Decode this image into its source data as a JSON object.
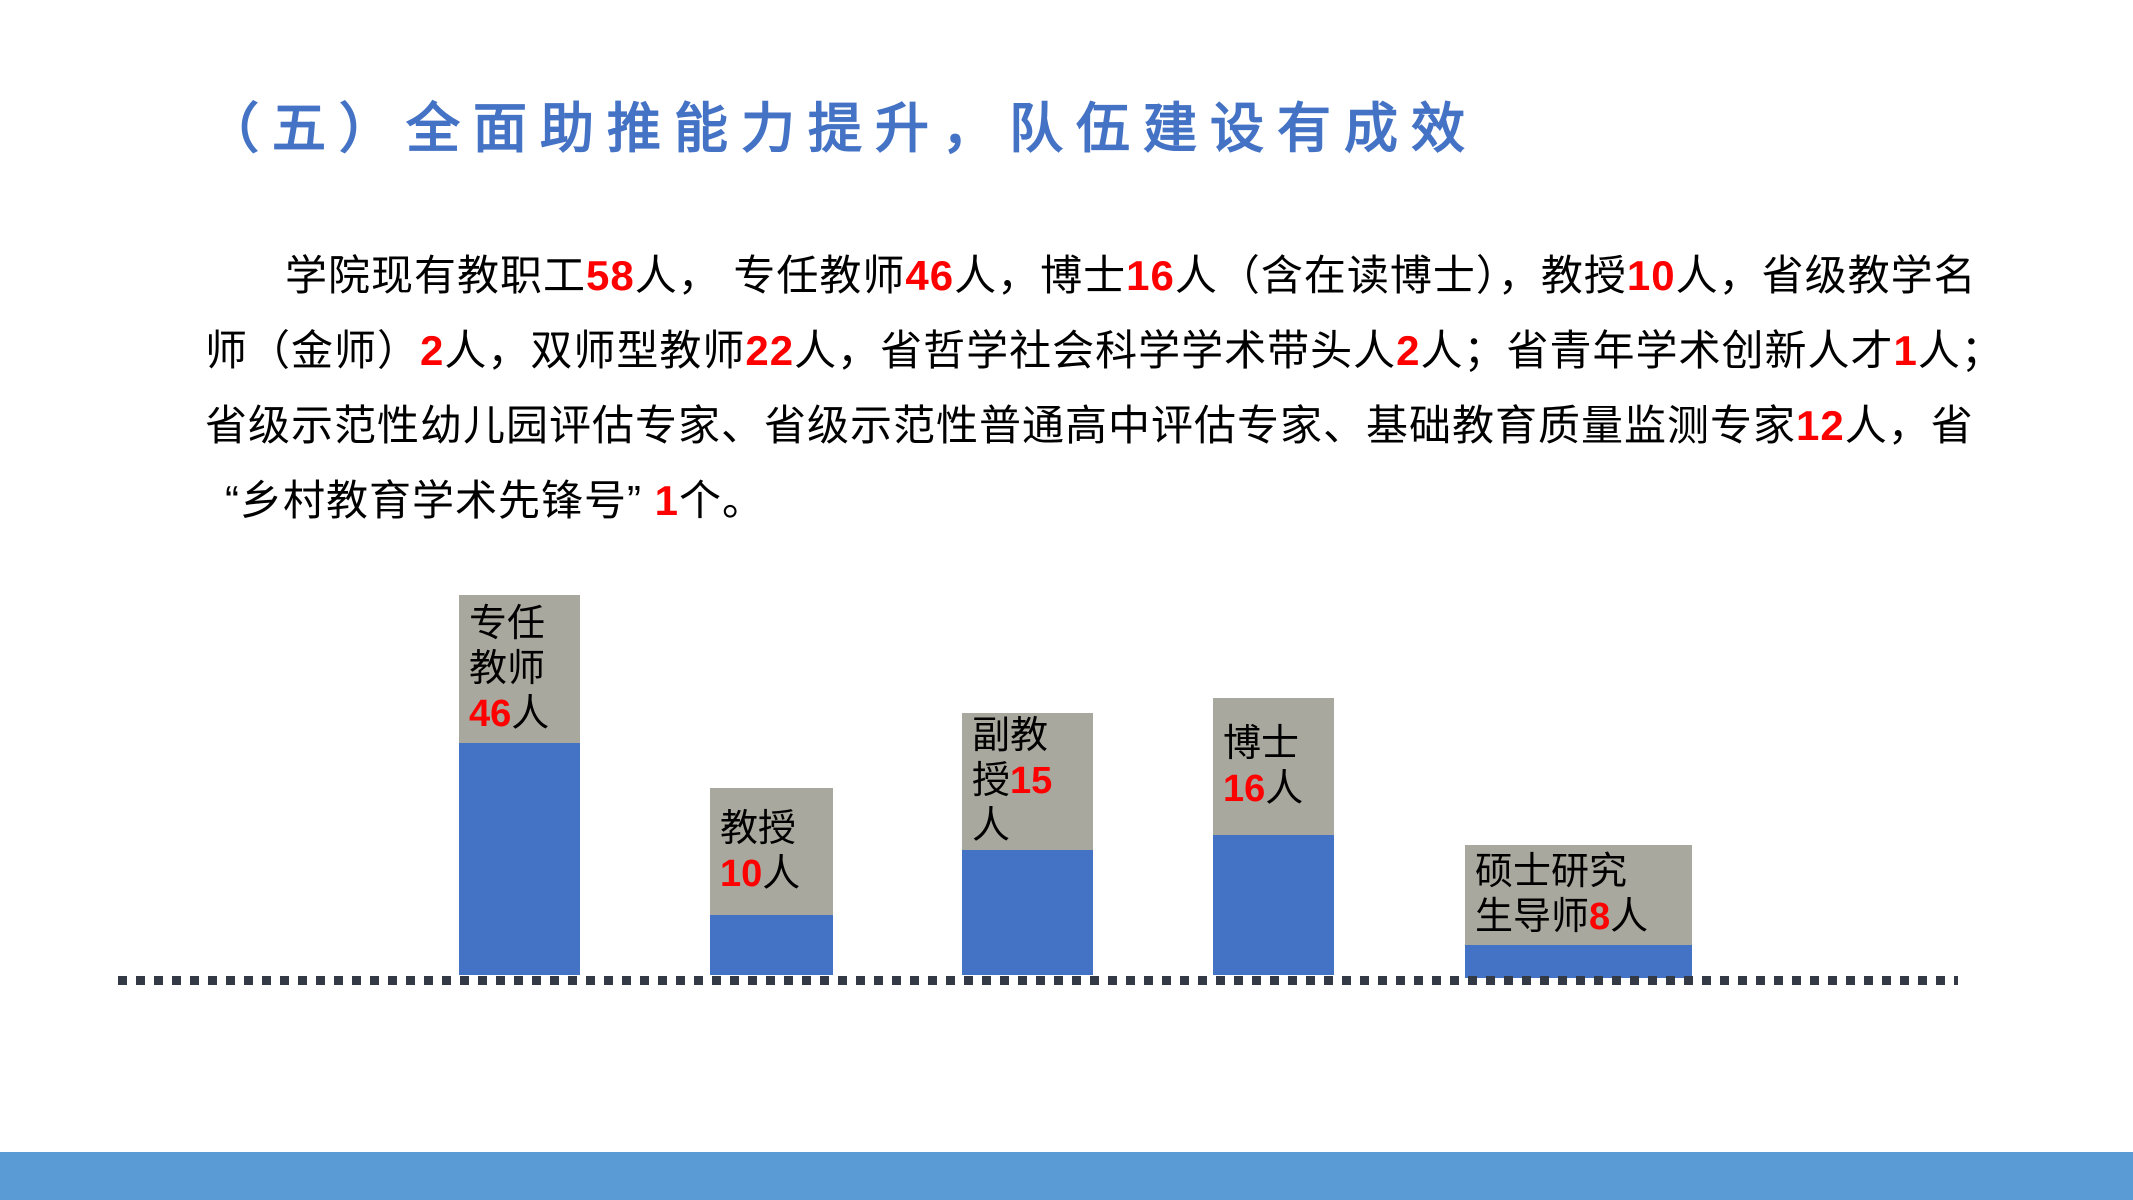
{
  "slide": {
    "title": "（五）全面助推能力提升，队伍建设有成效"
  },
  "paragraph": {
    "lines": [
      {
        "indent": true,
        "quote": false,
        "segments": [
          {
            "text": "学院现有教职工"
          },
          {
            "text": "58",
            "red": true
          },
          {
            "text": "人， 专任教师"
          },
          {
            "text": "46",
            "red": true
          },
          {
            "text": "人，博士"
          },
          {
            "text": "16",
            "red": true
          },
          {
            "text": "人（含在读博士），教授"
          },
          {
            "text": "10",
            "red": true
          },
          {
            "text": "人，省级教学名"
          }
        ]
      },
      {
        "indent": false,
        "quote": false,
        "segments": [
          {
            "text": "师（金师）"
          },
          {
            "text": "2",
            "red": true
          },
          {
            "text": "人，双师型教师"
          },
          {
            "text": "22",
            "red": true
          },
          {
            "text": "人，省哲学社会科学学术带头人"
          },
          {
            "text": "2",
            "red": true
          },
          {
            "text": "人；省青年学术创新人才"
          },
          {
            "text": "1",
            "red": true
          },
          {
            "text": "人；"
          }
        ]
      },
      {
        "indent": false,
        "quote": false,
        "segments": [
          {
            "text": "省级示范性幼儿园评估专家、省级示范性普通高中评估专家、基础教育质量监测专家"
          },
          {
            "text": "12",
            "red": true
          },
          {
            "text": "人，省"
          }
        ]
      },
      {
        "indent": false,
        "quote": true,
        "segments": [
          {
            "text": "“乡村教育学术先锋号” "
          },
          {
            "text": "1",
            "red": true
          },
          {
            "text": "个。"
          }
        ]
      }
    ]
  },
  "chart_data": {
    "type": "bar",
    "title": "",
    "categories": [
      "专任教师",
      "教授",
      "副教授",
      "博士",
      "硕士研究生导师"
    ],
    "values": [
      46,
      10,
      15,
      16,
      8
    ],
    "unit": "人",
    "xlabel": "",
    "ylabel": "",
    "grid": false,
    "legend_position": "none",
    "bar_color": "#4472c4",
    "label_box_color": "#a8a89e",
    "value_color": "#ff0000",
    "baseline_style": "square-dotted"
  },
  "bars": [
    {
      "category": "专任教师",
      "value": 46,
      "label_lines": [
        [
          {
            "text": "专任"
          }
        ],
        [
          {
            "text": "教师"
          }
        ],
        [
          {
            "text": "46",
            "red": true
          },
          {
            "text": "人"
          }
        ]
      ]
    },
    {
      "category": "教授",
      "value": 10,
      "label_lines": [
        [
          {
            "text": "教授"
          }
        ],
        [
          {
            "text": "10",
            "red": true
          },
          {
            "text": "人"
          }
        ]
      ]
    },
    {
      "category": "副教授",
      "value": 15,
      "label_lines": [
        [
          {
            "text": "副教"
          }
        ],
        [
          {
            "text": "授"
          },
          {
            "text": "15",
            "red": true
          }
        ],
        [
          {
            "text": "人"
          }
        ]
      ]
    },
    {
      "category": "博士",
      "value": 16,
      "label_lines": [
        [
          {
            "text": "博士"
          }
        ],
        [
          {
            "text": "16",
            "red": true
          },
          {
            "text": "人"
          }
        ]
      ]
    },
    {
      "category": "硕士研究生导师",
      "value": 8,
      "label_lines": [
        [
          {
            "text": "硕士研究"
          }
        ],
        [
          {
            "text": "生导师"
          },
          {
            "text": "8",
            "red": true
          },
          {
            "text": "人"
          }
        ]
      ]
    }
  ],
  "colors": {
    "title_blue": "#4472c4",
    "bar_blue": "#4472c4",
    "label_gray": "#a8a89e",
    "footer_blue": "#5b9bd5",
    "dot_dark": "#333a45",
    "highlight_red": "#ff0000",
    "body_text": "#000000"
  }
}
